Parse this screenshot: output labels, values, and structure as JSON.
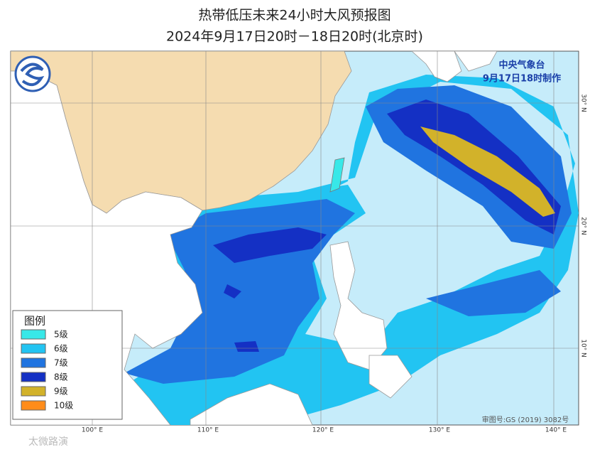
{
  "header": {
    "title": "热带低压未来24小时大风预报图",
    "subtitle": "2024年9月17日20时－18日20时(北京时)"
  },
  "issuer": {
    "agency": "中央气象台",
    "made": "9月17日18时制作"
  },
  "legend": {
    "title": "图例",
    "items": [
      {
        "label": "5级",
        "color": "#38e8e8"
      },
      {
        "label": "6级",
        "color": "#22c4f2"
      },
      {
        "label": "7级",
        "color": "#2074e0"
      },
      {
        "label": "8级",
        "color": "#1430c4"
      },
      {
        "label": "9级",
        "color": "#d2b22a"
      },
      {
        "label": "10级",
        "color": "#ff8c1a"
      }
    ]
  },
  "longitudes": [
    "100° E",
    "110° E",
    "120° E",
    "130° E",
    "140° E"
  ],
  "latitudes": [
    "30° N",
    "20° N",
    "10° N"
  ],
  "footer": {
    "approval": "审图号:GS (2019) 3082号",
    "watermark": "太微路演"
  }
}
